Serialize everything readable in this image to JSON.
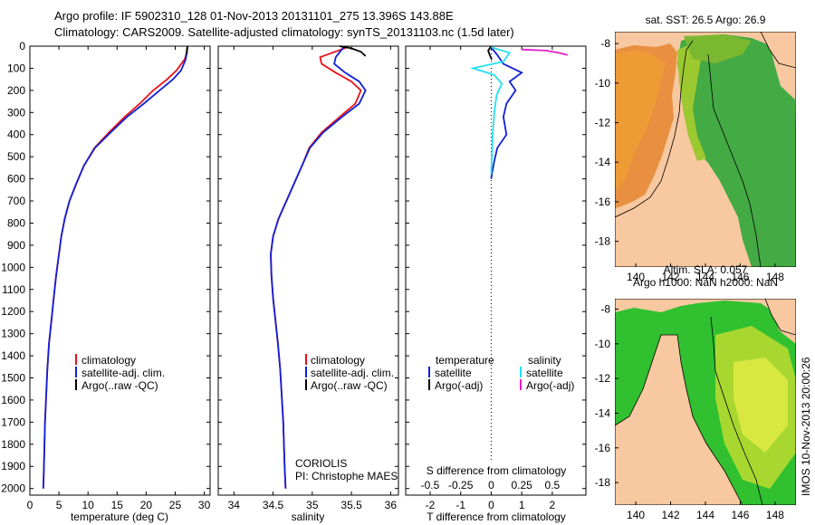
{
  "header": {
    "line1": "Argo profile: IF 5902310_128 01-Nov-2013 20131101_275 13.396S 143.88E",
    "line2": "Climatology: CARS2009. Satellite-adjusted climatology: synTS_20131103.nc (1.5d later)"
  },
  "colors": {
    "climatology": "#e8121a",
    "satellite": "#1020d8",
    "argo": "#000000",
    "satellite_salinity": "#22e0f0",
    "argo_salinity": "#e020c8"
  },
  "chart_data": [
    {
      "type": "line",
      "xlabel": "temperature (deg C)",
      "xlim": [
        0,
        31
      ],
      "ylim": [
        2030,
        0
      ],
      "xticks": [
        0,
        5,
        10,
        15,
        20,
        25,
        30
      ],
      "yticks": [
        0,
        100,
        200,
        300,
        400,
        500,
        600,
        700,
        800,
        900,
        1000,
        1100,
        1200,
        1300,
        1400,
        1500,
        1600,
        1700,
        1800,
        1900,
        2000
      ],
      "legend": [
        "climatology",
        "satellite-adj. clim.",
        "Argo(..raw -QC)"
      ],
      "series": [
        {
          "name": "climatology",
          "x": [
            27.1,
            27.0,
            26.6,
            25.2,
            23.6,
            21.2,
            18.9,
            16.3,
            13.6,
            11.1,
            9.3,
            8.0,
            6.8,
            6.0,
            5.4,
            5.0,
            4.5,
            4.1,
            3.7,
            3.3,
            3.0,
            2.8,
            2.6,
            2.5,
            2.4,
            2.3
          ],
          "y": [
            5,
            30,
            60,
            110,
            150,
            200,
            260,
            320,
            390,
            460,
            540,
            620,
            700,
            780,
            860,
            940,
            1040,
            1140,
            1240,
            1340,
            1460,
            1580,
            1700,
            1820,
            1920,
            2000
          ]
        },
        {
          "name": "satellite-adj. clim.",
          "x": [
            27.1,
            27.0,
            26.8,
            26.0,
            24.6,
            22.3,
            19.6,
            16.7,
            13.9,
            11.2,
            9.3,
            8.0,
            6.8,
            6.0,
            5.4,
            5.0,
            4.5,
            4.1,
            3.7,
            3.3,
            3.0,
            2.8,
            2.6,
            2.5,
            2.4,
            2.3
          ],
          "y": [
            5,
            30,
            60,
            110,
            150,
            200,
            260,
            320,
            390,
            460,
            540,
            620,
            700,
            780,
            860,
            940,
            1040,
            1140,
            1240,
            1340,
            1460,
            1580,
            1700,
            1820,
            1920,
            2000
          ]
        },
        {
          "name": "Argo(..raw -QC)",
          "x": [
            27.1,
            27.0,
            26.9
          ],
          "y": [
            0,
            20,
            40
          ]
        }
      ]
    },
    {
      "type": "line",
      "xlabel": "salinity",
      "xlim": [
        33.8,
        36.1
      ],
      "ylim": [
        2030,
        0
      ],
      "xticks": [
        34,
        34.5,
        35,
        35.5,
        36
      ],
      "legend": [
        "climatology",
        "satellite-adj. clim.",
        "Argo(..raw -QC)"
      ],
      "annotations": [
        "CORIOLIS",
        "PI: Christophe MAES"
      ],
      "series": [
        {
          "name": "climatology",
          "x": [
            35.45,
            35.1,
            35.12,
            35.3,
            35.5,
            35.62,
            35.55,
            35.35,
            35.12,
            34.96,
            34.87,
            34.77,
            34.67,
            34.57,
            34.5,
            34.47,
            34.48,
            34.5,
            34.53,
            34.56,
            34.59,
            34.61,
            34.63,
            34.64,
            34.65,
            34.66
          ],
          "y": [
            5,
            50,
            80,
            120,
            160,
            200,
            260,
            320,
            390,
            460,
            540,
            620,
            700,
            780,
            860,
            940,
            1040,
            1140,
            1240,
            1340,
            1460,
            1580,
            1700,
            1820,
            1920,
            2000
          ]
        },
        {
          "name": "satellite-adj. clim.",
          "x": [
            35.4,
            35.3,
            35.28,
            35.42,
            35.6,
            35.68,
            35.6,
            35.38,
            35.14,
            34.97,
            34.87,
            34.77,
            34.67,
            34.57,
            34.5,
            34.47,
            34.48,
            34.5,
            34.53,
            34.56,
            34.59,
            34.61,
            34.63,
            34.64,
            34.65,
            34.66
          ],
          "y": [
            5,
            50,
            80,
            120,
            160,
            200,
            260,
            320,
            390,
            460,
            540,
            620,
            700,
            780,
            860,
            940,
            1040,
            1140,
            1240,
            1340,
            1460,
            1580,
            1700,
            1820,
            1920,
            2000
          ]
        },
        {
          "name": "Argo(..raw -QC)",
          "x": [
            35.35,
            35.5,
            35.62,
            35.68
          ],
          "y": [
            0,
            10,
            25,
            45
          ]
        }
      ]
    },
    {
      "type": "line",
      "xlabel": "T difference from climatology",
      "top_label": "S difference from climatology",
      "xlim": [
        -2.8,
        3.1
      ],
      "ylim": [
        2030,
        0
      ],
      "xticks": [
        -2,
        -1,
        0,
        1,
        2
      ],
      "top_ticks": [
        "-0.5",
        "-0.25",
        "0",
        "0.25",
        "0.5"
      ],
      "top_tick_x": [
        -2,
        -1,
        0,
        1,
        2
      ],
      "legend_headers": [
        "temperature",
        "salinity"
      ],
      "legend": [
        "satellite",
        "Argo(-adj)",
        "satellite",
        "Argo(-adj)"
      ],
      "series": [
        {
          "name": "satellite",
          "x": [
            0.0,
            0.2,
            0.4,
            1.0,
            0.6,
            0.8,
            0.5,
            0.4,
            0.5,
            0.2,
            0.1,
            0.02,
            0.0
          ],
          "y": [
            5,
            40,
            80,
            120,
            160,
            200,
            260,
            320,
            400,
            460,
            520,
            580,
            600
          ]
        },
        {
          "name": "Argo(-adj)",
          "x": [
            0.0,
            -0.1,
            -0.05,
            0.02
          ],
          "y": [
            0,
            20,
            40,
            60
          ]
        },
        {
          "name": "satellite",
          "x": [
            0.0,
            0.6,
            0.4,
            -0.6,
            0.1,
            0.35,
            0.18,
            0.1,
            0.05,
            0.02,
            0.0
          ],
          "y": [
            5,
            30,
            70,
            100,
            130,
            170,
            220,
            300,
            400,
            500,
            580
          ]
        },
        {
          "name": "Argo(-adj)",
          "x": [
            1.0,
            1.8,
            2.2,
            2.5
          ],
          "y": [
            15,
            20,
            30,
            40
          ]
        }
      ]
    },
    {
      "type": "heatmap",
      "title": "sat. SST: 26.5  Argo: 26.9",
      "xticks": [
        140,
        142,
        144,
        146,
        148
      ],
      "yticks": [
        -8,
        -10,
        -12,
        -14,
        -16,
        -18
      ],
      "xlim": [
        138.8,
        149.2
      ],
      "ylim": [
        -19.3,
        -7.4
      ]
    },
    {
      "type": "heatmap",
      "title_line1": "Altim. SLA: 0.057",
      "title_line2": "Argo h1000: NaN  h2000: NaN",
      "xticks": [
        140,
        142,
        144,
        146,
        148
      ],
      "yticks": [
        -8,
        -10,
        -12,
        -14,
        -16,
        -18
      ],
      "xlim": [
        138.8,
        149.2
      ],
      "ylim": [
        -19.3,
        -7.4
      ]
    }
  ],
  "watermark": "IMOS 10-Nov-2013 20:00:26"
}
